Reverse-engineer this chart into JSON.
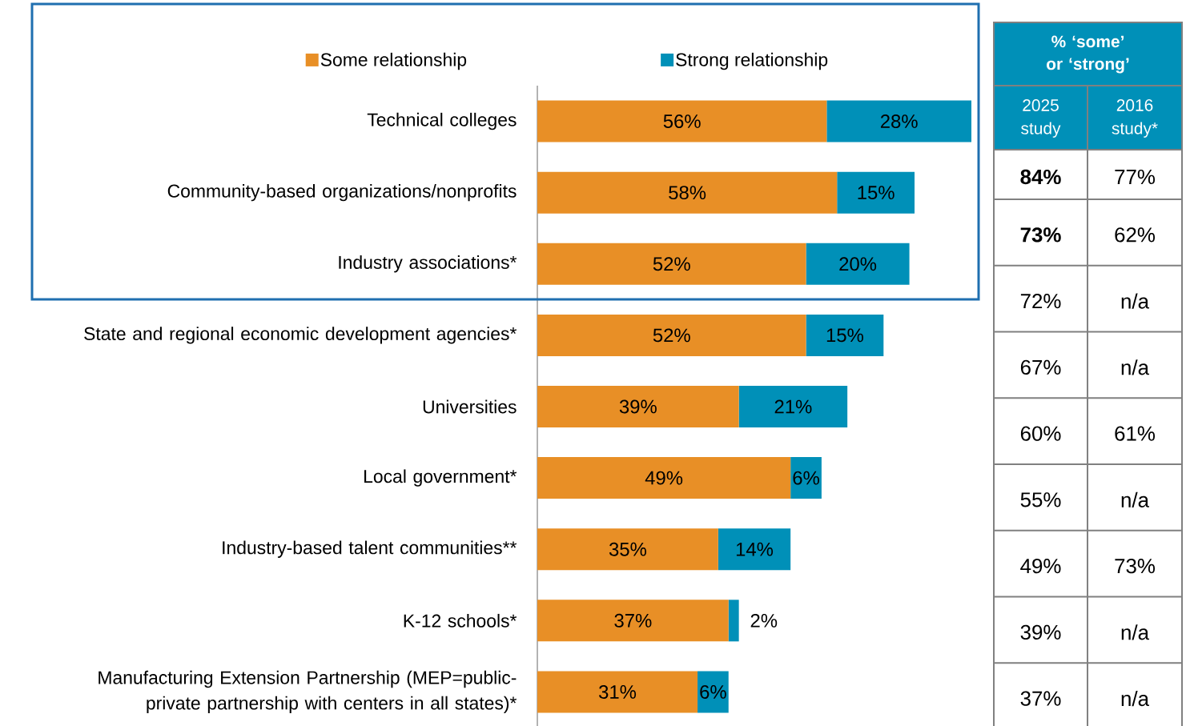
{
  "chart_data": [
    {
      "type": "bar",
      "orientation": "horizontal",
      "stacked": true,
      "legend": "top",
      "xlim": [
        0,
        84
      ],
      "categories": [
        "Technical colleges",
        "Community-based organizations/nonprofits",
        "Industry associations*",
        "State and regional economic development agencies*",
        "Universities",
        "Local government*",
        "Industry-based talent communities**",
        "K-12 schools*",
        "Manufacturing Extension Partnership (MEP=public-private partnership with centers in all states)*"
      ],
      "series": [
        {
          "name": "Some relationship",
          "color": "#e88f26",
          "values": [
            56,
            58,
            52,
            52,
            39,
            49,
            35,
            37,
            31
          ],
          "value_labels": [
            "56%",
            "58%",
            "52%",
            "52%",
            "39%",
            "49%",
            "35%",
            "37%",
            "31%"
          ]
        },
        {
          "name": "Strong relationship",
          "color": "#0090b8",
          "values": [
            28,
            15,
            20,
            15,
            21,
            6,
            14,
            2,
            6
          ],
          "value_labels": [
            "28%",
            "15%",
            "20%",
            "15%",
            "21%",
            "6%",
            "14%",
            "2%",
            "6%"
          ]
        }
      ]
    },
    {
      "type": "other",
      "title": "% ‘some’ or ‘strong’",
      "categories": [
        "2025 study",
        "2016 study*"
      ],
      "annotations": [
        "**84%**",
        "77%",
        "**73%**",
        "62%",
        "72%",
        "n/a",
        "67%",
        "n/a",
        "60%",
        "61%",
        "55%",
        "n/a",
        "49%",
        "73%",
        "39%",
        "n/a",
        "37%",
        "n/a"
      ]
    }
  ]
}
